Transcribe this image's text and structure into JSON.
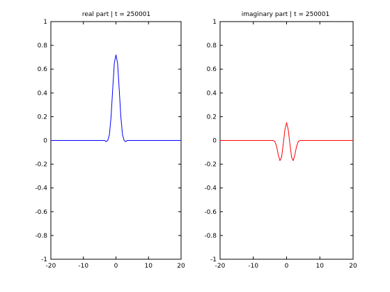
{
  "chart_data": [
    {
      "type": "line",
      "title": "real part | t = 250001",
      "xlabel": "",
      "ylabel": "",
      "xlim": [
        -20,
        20
      ],
      "ylim": [
        -1,
        1
      ],
      "xticks": [
        -20,
        -10,
        0,
        10,
        20
      ],
      "yticks": [
        -1,
        -0.8,
        -0.6,
        -0.4,
        -0.2,
        0,
        0.2,
        0.4,
        0.6,
        0.8,
        1
      ],
      "grid": false,
      "series": [
        {
          "color": "#0000ff",
          "x": [
            -20,
            -3.5,
            -3.0,
            -2.5,
            -2.0,
            -1.5,
            -1.0,
            -0.5,
            0,
            0.5,
            1.0,
            1.5,
            2.0,
            2.5,
            3.0,
            3.5,
            20
          ],
          "y": [
            0,
            0,
            -0.01,
            0.0,
            0.05,
            0.2,
            0.43,
            0.65,
            0.72,
            0.65,
            0.43,
            0.2,
            0.05,
            0.0,
            -0.01,
            0,
            0
          ]
        }
      ]
    },
    {
      "type": "line",
      "title": "imaginary part | t = 250001",
      "xlabel": "",
      "ylabel": "",
      "xlim": [
        -20,
        20
      ],
      "ylim": [
        -1,
        1
      ],
      "xticks": [
        -20,
        -10,
        0,
        10,
        20
      ],
      "yticks": [
        -1,
        -0.8,
        -0.6,
        -0.4,
        -0.2,
        0,
        0.2,
        0.4,
        0.6,
        0.8,
        1
      ],
      "grid": false,
      "series": [
        {
          "color": "#ff0000",
          "x": [
            -20,
            -4.0,
            -3.5,
            -3.0,
            -2.5,
            -2.0,
            -1.5,
            -1.0,
            -0.5,
            0,
            0.5,
            1.0,
            1.5,
            2.0,
            2.5,
            3.0,
            3.5,
            4.0,
            20
          ],
          "y": [
            0,
            0,
            -0.01,
            -0.05,
            -0.12,
            -0.17,
            -0.14,
            -0.03,
            0.09,
            0.15,
            0.09,
            -0.03,
            -0.14,
            -0.17,
            -0.12,
            -0.05,
            -0.01,
            0,
            0
          ]
        }
      ]
    }
  ]
}
